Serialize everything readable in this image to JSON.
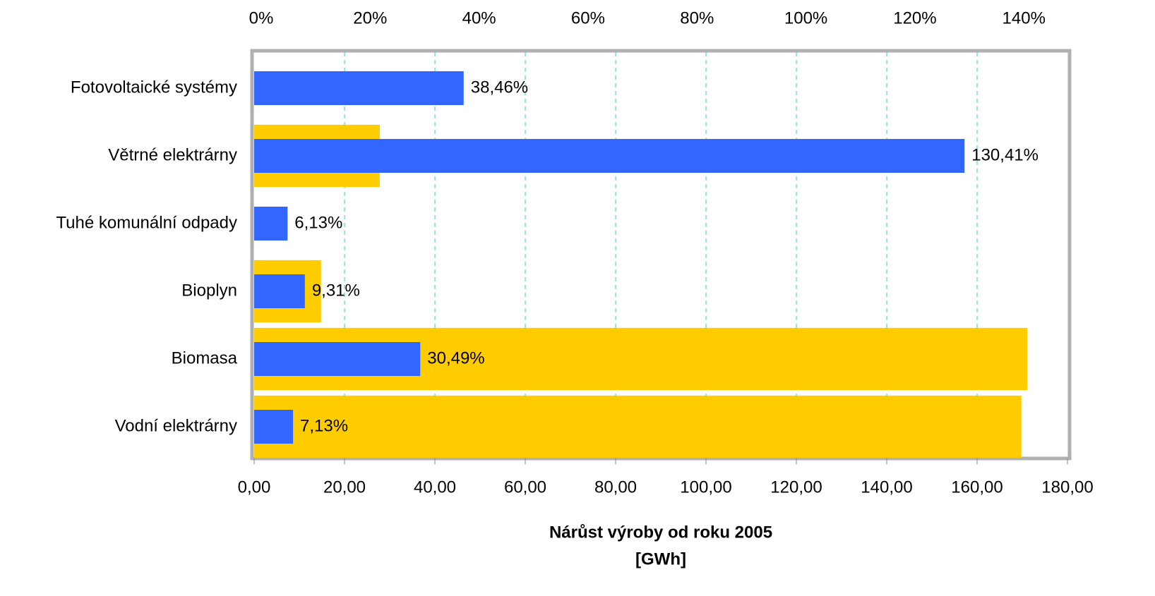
{
  "chart_data": {
    "type": "bar",
    "orientation": "horizontal",
    "categories": [
      "Fotovoltaické systémy",
      "Větrné elektrárny",
      "Tuhé komunální odpady",
      "Bioplyn",
      "Biomasa",
      "Vodní elektrárny"
    ],
    "series": [
      {
        "color": "#ffcc00",
        "values": [
          0,
          27.8,
          0,
          14.8,
          171.1,
          169.8
        ]
      },
      {
        "color": "#3366ff",
        "axis": "x2",
        "values": [
          38.46,
          130.41,
          6.13,
          9.31,
          30.49,
          7.13
        ],
        "value_labels": [
          "38,46%",
          "130,41%",
          "6,13%",
          "9,31%",
          "30,49%",
          "7,13%"
        ]
      }
    ],
    "xlim": [
      0,
      180
    ],
    "xticks": [
      {
        "value": 0,
        "label": "0,00"
      },
      {
        "value": 20,
        "label": "20,00"
      },
      {
        "value": 40,
        "label": "40,00"
      },
      {
        "value": 60,
        "label": "60,00"
      },
      {
        "value": 80,
        "label": "80,00"
      },
      {
        "value": 100,
        "label": "100,00"
      },
      {
        "value": 120,
        "label": "120,00"
      },
      {
        "value": 140,
        "label": "140,00"
      },
      {
        "value": 160,
        "label": "160,00"
      },
      {
        "value": 180,
        "label": "180,00"
      }
    ],
    "x2lim": [
      0,
      149.3
    ],
    "x2ticks": [
      {
        "value": 0,
        "label": "0%"
      },
      {
        "value": 20,
        "label": "20%"
      },
      {
        "value": 40,
        "label": "40%"
      },
      {
        "value": 60,
        "label": "60%"
      },
      {
        "value": 80,
        "label": "80%"
      },
      {
        "value": 100,
        "label": "100%"
      },
      {
        "value": 120,
        "label": "120%"
      },
      {
        "value": 140,
        "label": "140%"
      }
    ],
    "x_label": [
      "Nárůst výroby od roku 2005",
      "[GWh]"
    ],
    "grid": true
  }
}
